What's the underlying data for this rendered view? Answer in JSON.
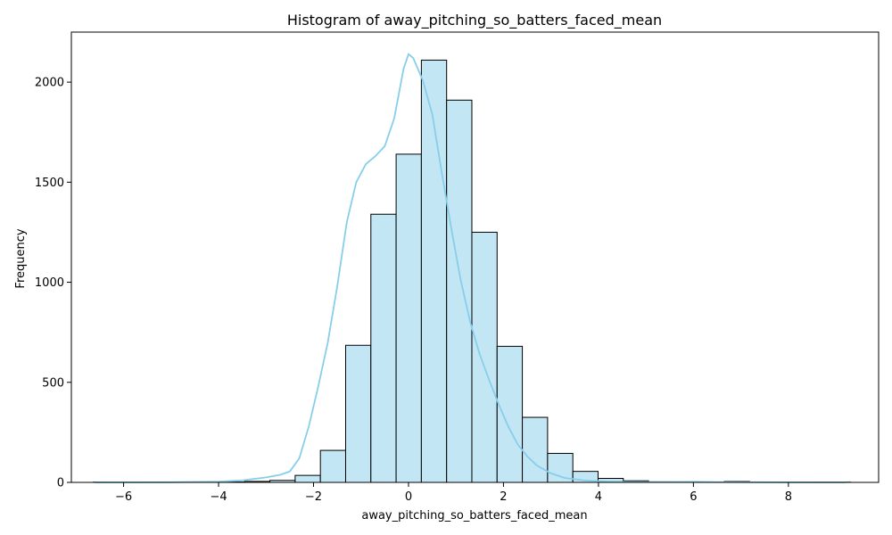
{
  "chart_data": {
    "type": "bar",
    "subtype": "histogram",
    "title": "Histogram of away_pitching_so_batters_faced_mean",
    "xlabel": "away_pitching_so_batters_faced_mean",
    "ylabel": "Frequency",
    "xlim": [
      -7.1,
      9.9
    ],
    "ylim": [
      0,
      2250
    ],
    "xticks": [
      -6,
      -4,
      -2,
      0,
      2,
      4,
      6,
      8
    ],
    "xtick_labels": [
      "−6",
      "−4",
      "−2",
      "0",
      "2",
      "4",
      "6",
      "8"
    ],
    "yticks": [
      0,
      500,
      1000,
      1500,
      2000
    ],
    "ytick_labels": [
      "0",
      "500",
      "1000",
      "1500",
      "2000"
    ],
    "grid": false,
    "legend": "none",
    "bar_fill": "#c3e6f5",
    "bar_edge": "#000000",
    "kde_color": "#87ceeb",
    "bins": {
      "start": -6.64,
      "width": 0.5316,
      "counts": [
        1,
        0,
        0,
        0,
        1,
        2,
        5,
        10,
        35,
        160,
        685,
        1340,
        1640,
        2110,
        1910,
        1250,
        680,
        325,
        145,
        55,
        20,
        8,
        3,
        1,
        2,
        5,
        2,
        1,
        1,
        1
      ]
    },
    "kde": {
      "x": [
        -6.6,
        -5.0,
        -4.0,
        -3.5,
        -3.0,
        -2.7,
        -2.5,
        -2.3,
        -2.1,
        -1.9,
        -1.7,
        -1.5,
        -1.3,
        -1.1,
        -0.9,
        -0.7,
        -0.5,
        -0.3,
        -0.1,
        0.0,
        0.1,
        0.3,
        0.5,
        0.7,
        0.9,
        1.1,
        1.3,
        1.5,
        1.7,
        1.9,
        2.1,
        2.3,
        2.5,
        2.7,
        3.0,
        3.3,
        3.7,
        4.2,
        5.0,
        6.0,
        6.5,
        7.5,
        8.5,
        9.2
      ],
      "y": [
        0,
        1,
        4,
        10,
        25,
        38,
        55,
        120,
        280,
        480,
        700,
        980,
        1300,
        1500,
        1590,
        1630,
        1680,
        1820,
        2070,
        2140,
        2120,
        2010,
        1840,
        1550,
        1270,
        1010,
        800,
        640,
        510,
        390,
        280,
        190,
        130,
        85,
        45,
        22,
        10,
        4,
        2,
        3,
        2,
        1,
        0,
        0
      ]
    }
  }
}
